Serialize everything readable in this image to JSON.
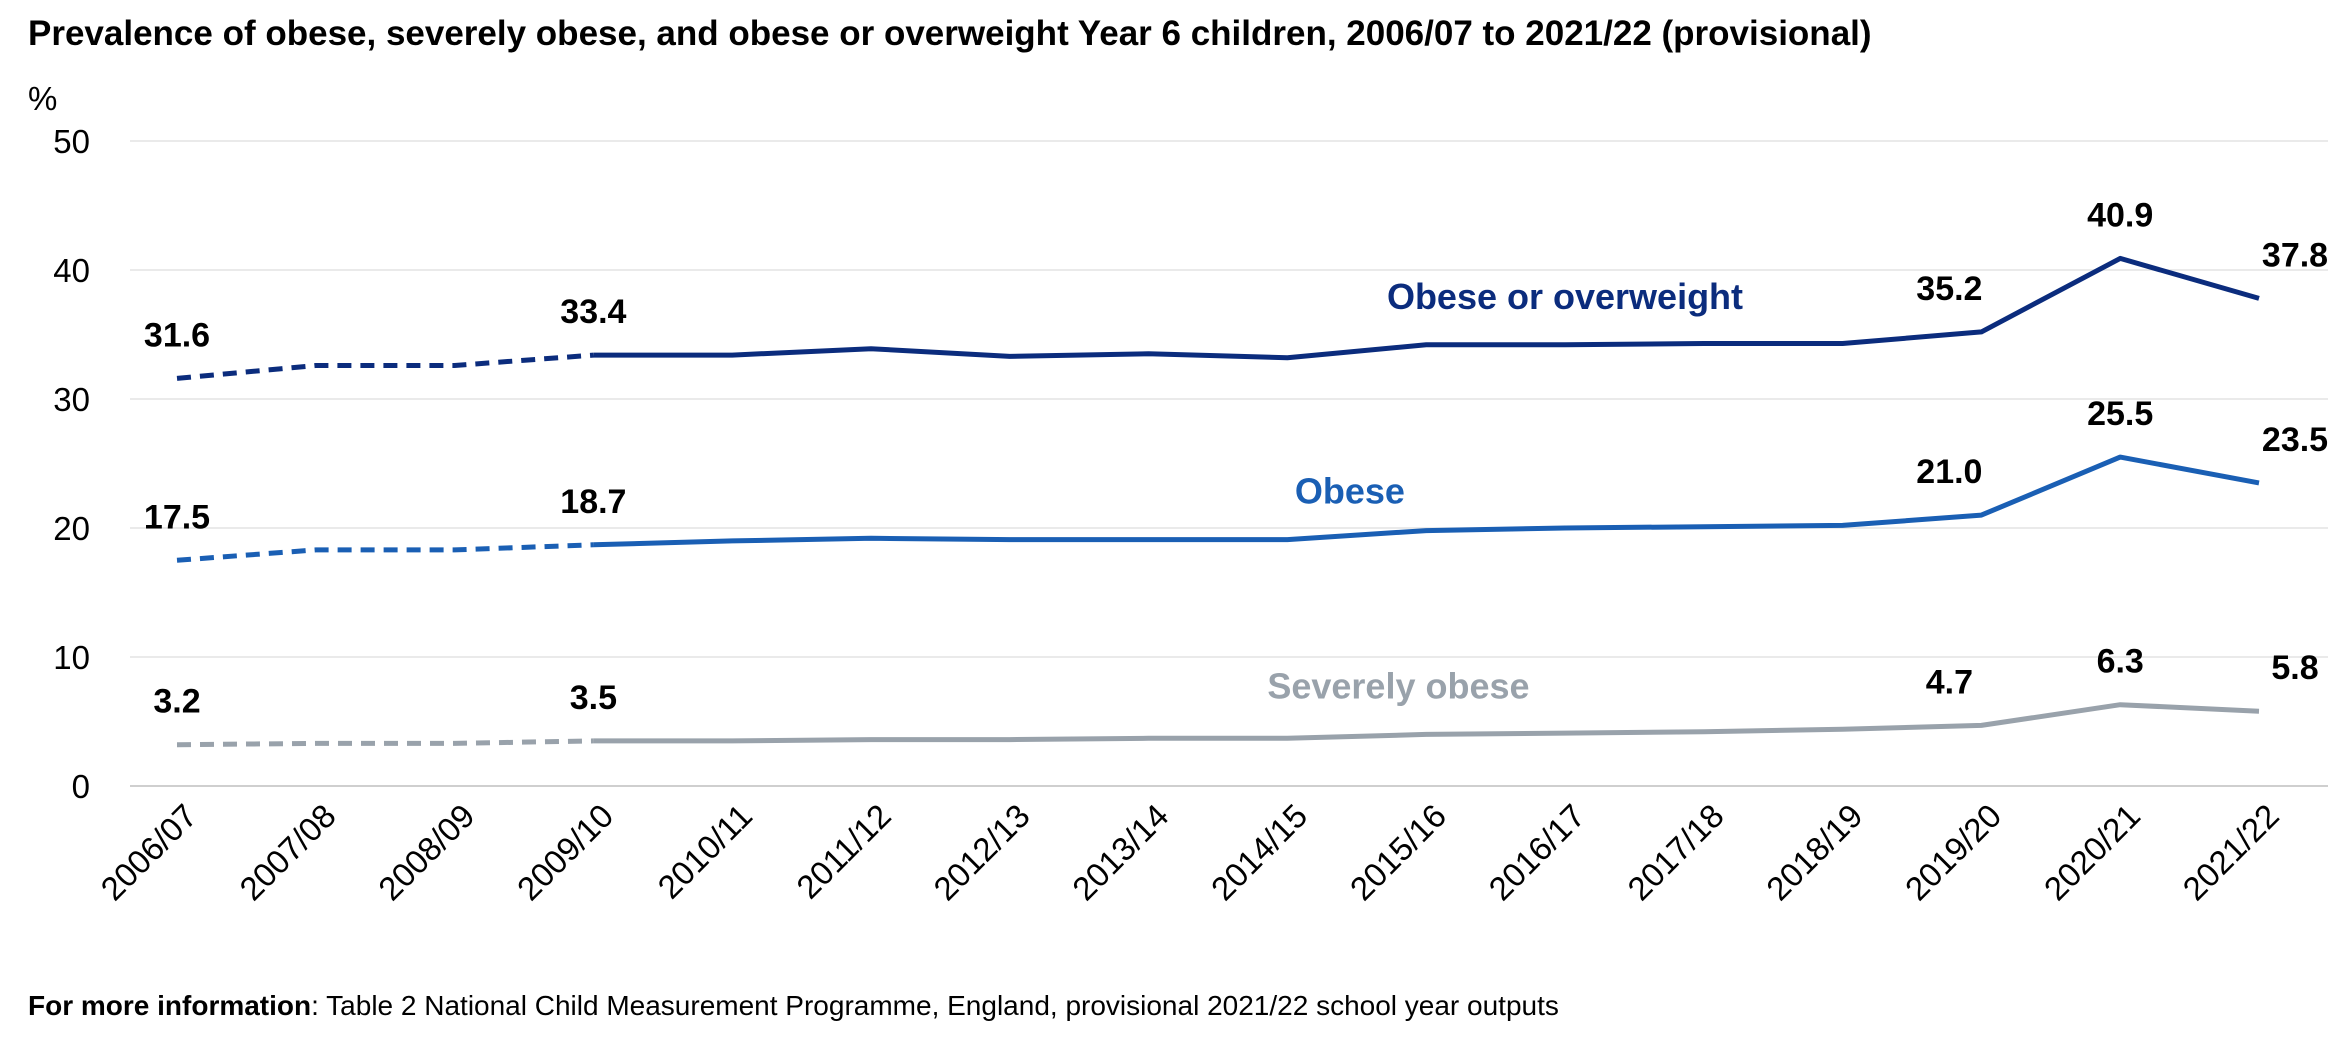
{
  "chart_data": {
    "type": "line",
    "title": "Prevalence of obese, severely obese, and obese or overweight Year 6 children, 2006/07 to 2021/22 (provisional)",
    "ylabel": "%",
    "ylim": [
      0,
      50
    ],
    "yticks": [
      "0",
      "10",
      "20",
      "30",
      "40",
      "50"
    ],
    "grid": true,
    "categories": [
      "2006/07",
      "2007/08",
      "2008/09",
      "2009/10",
      "2010/11",
      "2011/12",
      "2012/13",
      "2013/14",
      "2014/15",
      "2015/16",
      "2016/17",
      "2017/18",
      "2018/19",
      "2019/20",
      "2020/21",
      "2021/22"
    ],
    "dashed_through_index": 3,
    "series": [
      {
        "name": "Obese or overweight",
        "color": "#0b2c7d",
        "values": [
          31.6,
          32.6,
          32.6,
          33.4,
          33.4,
          33.9,
          33.3,
          33.5,
          33.2,
          34.2,
          34.2,
          34.3,
          34.3,
          35.2,
          40.9,
          37.8
        ],
        "data_labels": {
          "0": "31.6",
          "3": "33.4",
          "13": "35.2",
          "14": "40.9",
          "15": "37.8"
        }
      },
      {
        "name": "Obese",
        "color": "#1a5fb4",
        "values": [
          17.5,
          18.3,
          18.3,
          18.7,
          19.0,
          19.2,
          19.1,
          19.1,
          19.1,
          19.8,
          20.0,
          20.1,
          20.2,
          21.0,
          25.5,
          23.5
        ],
        "data_labels": {
          "0": "17.5",
          "3": "18.7",
          "13": "21.0",
          "14": "25.5",
          "15": "23.5"
        }
      },
      {
        "name": "Severely obese",
        "color": "#99a2ab",
        "values": [
          3.2,
          3.3,
          3.3,
          3.5,
          3.5,
          3.6,
          3.6,
          3.7,
          3.7,
          4.0,
          4.1,
          4.2,
          4.4,
          4.7,
          6.3,
          5.8
        ],
        "data_labels": {
          "0": "3.2",
          "3": "3.5",
          "13": "4.7",
          "14": "6.3",
          "15": "5.8"
        }
      }
    ]
  },
  "footnote": {
    "bold": "For more information",
    "text": ": Table 2 National Child Measurement Programme, England, provisional 2021/22 school year outputs"
  }
}
